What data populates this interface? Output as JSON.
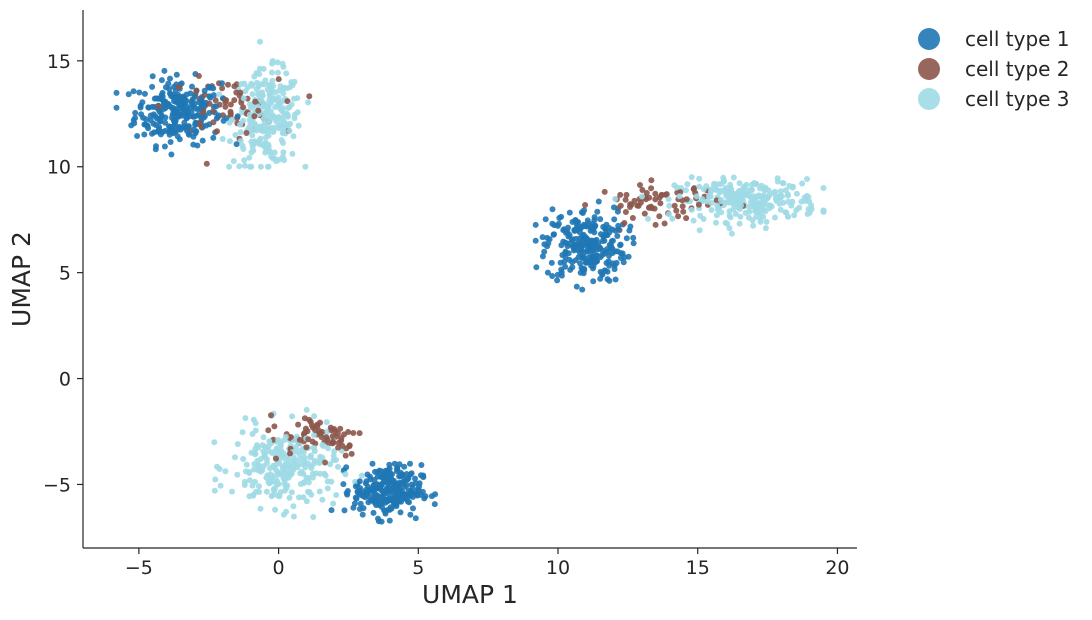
{
  "chart_data": {
    "type": "scatter",
    "title": "",
    "xlabel": "UMAP 1",
    "ylabel": "UMAP 2",
    "xlim": [
      -7,
      20.7
    ],
    "ylim": [
      -8,
      17.4
    ],
    "xticks": [
      -5,
      0,
      5,
      10,
      15,
      20
    ],
    "yticks": [
      -5,
      0,
      5,
      10,
      15
    ],
    "xtick_labels": [
      "−5",
      "0",
      "5",
      "10",
      "15",
      "20"
    ],
    "ytick_labels": [
      "−5",
      "0",
      "5",
      "10",
      "15"
    ],
    "grid": false,
    "legend_position": "outside-top-right",
    "series": [
      {
        "name": "cell type 1",
        "color": "#1f77b4"
      },
      {
        "name": "cell type 2",
        "color": "#8c564b"
      },
      {
        "name": "cell type 3",
        "color": "#9edae5"
      }
    ],
    "clusters": [
      {
        "name": "top-left",
        "x_range": [
          -5.8,
          1.1
        ],
        "y_range": [
          10.0,
          16.2
        ],
        "regions": [
          {
            "series": "cell type 1",
            "center": [
              -3.6,
              12.6
            ],
            "spread": [
              1.4,
              1.4
            ]
          },
          {
            "series": "cell type 3",
            "center": [
              -0.4,
              12.3
            ],
            "spread": [
              1.1,
              2.0
            ]
          },
          {
            "series": "cell type 2",
            "center": [
              -2.0,
              12.8
            ],
            "spread": [
              1.8,
              1.2
            ]
          }
        ]
      },
      {
        "name": "right",
        "x_range": [
          9.2,
          19.5
        ],
        "y_range": [
          4.2,
          9.9
        ],
        "regions": [
          {
            "series": "cell type 1",
            "center": [
              11.0,
              6.3
            ],
            "spread": [
              1.3,
              1.6
            ]
          },
          {
            "series": "cell type 3",
            "center": [
              16.8,
              8.4
            ],
            "spread": [
              2.3,
              0.9
            ]
          },
          {
            "series": "cell type 2",
            "center": [
              13.6,
              8.3
            ],
            "spread": [
              2.0,
              0.8
            ]
          }
        ]
      },
      {
        "name": "bottom",
        "x_range": [
          -2.3,
          5.6
        ],
        "y_range": [
          -6.8,
          -1.3
        ],
        "regions": [
          {
            "series": "cell type 3",
            "center": [
              0.2,
              -4.2
            ],
            "spread": [
              1.7,
              1.7
            ]
          },
          {
            "series": "cell type 1",
            "center": [
              3.9,
              -5.3
            ],
            "spread": [
              1.1,
              1.1
            ]
          },
          {
            "series": "cell type 2",
            "center": [
              1.4,
              -2.7
            ],
            "spread": [
              1.6,
              0.9
            ]
          }
        ]
      }
    ]
  }
}
